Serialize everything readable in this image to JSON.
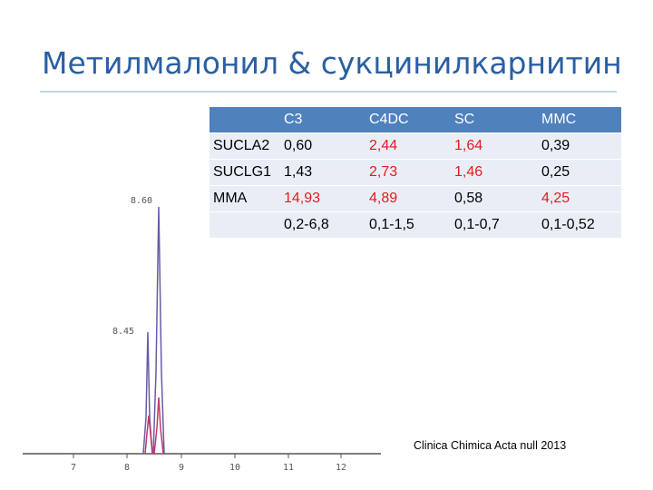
{
  "slide": {
    "title": "Метилмалонил & сукцинилкарнитин",
    "citation": "Clinica Chimica Acta null 2013"
  },
  "table": {
    "columns": [
      "C3",
      "C4DC",
      "SC",
      "MMC"
    ],
    "rows": [
      {
        "label": "SUCLA2",
        "cells": [
          "0,60",
          "2,44",
          "1,64",
          "0,39"
        ],
        "highlight": [
          false,
          true,
          true,
          false
        ]
      },
      {
        "label": "SUCLG1",
        "cells": [
          "1,43",
          "2,73",
          "1,46",
          "0,25"
        ],
        "highlight": [
          false,
          true,
          true,
          false
        ]
      },
      {
        "label": "MMA",
        "cells": [
          "14,93",
          "4,89",
          "0,58",
          "4,25"
        ],
        "highlight": [
          true,
          true,
          false,
          true
        ]
      },
      {
        "label": "",
        "cells": [
          "0,2-6,8",
          "0,1-1,5",
          "0,1-0,7",
          "0,1-0,52"
        ],
        "highlight": [
          false,
          false,
          false,
          false
        ]
      }
    ],
    "colors": {
      "header": "#4f81bd",
      "band": "#e9eef6",
      "highlight": "#e21c1c"
    }
  },
  "chromatogram": {
    "peak_labels": [
      "8.60",
      "8.45"
    ],
    "x_ticks": [
      "7",
      "8",
      "9",
      "10",
      "11",
      "12"
    ],
    "colors": {
      "trace1": "#6a5aa8",
      "trace2": "#c0396b"
    }
  }
}
